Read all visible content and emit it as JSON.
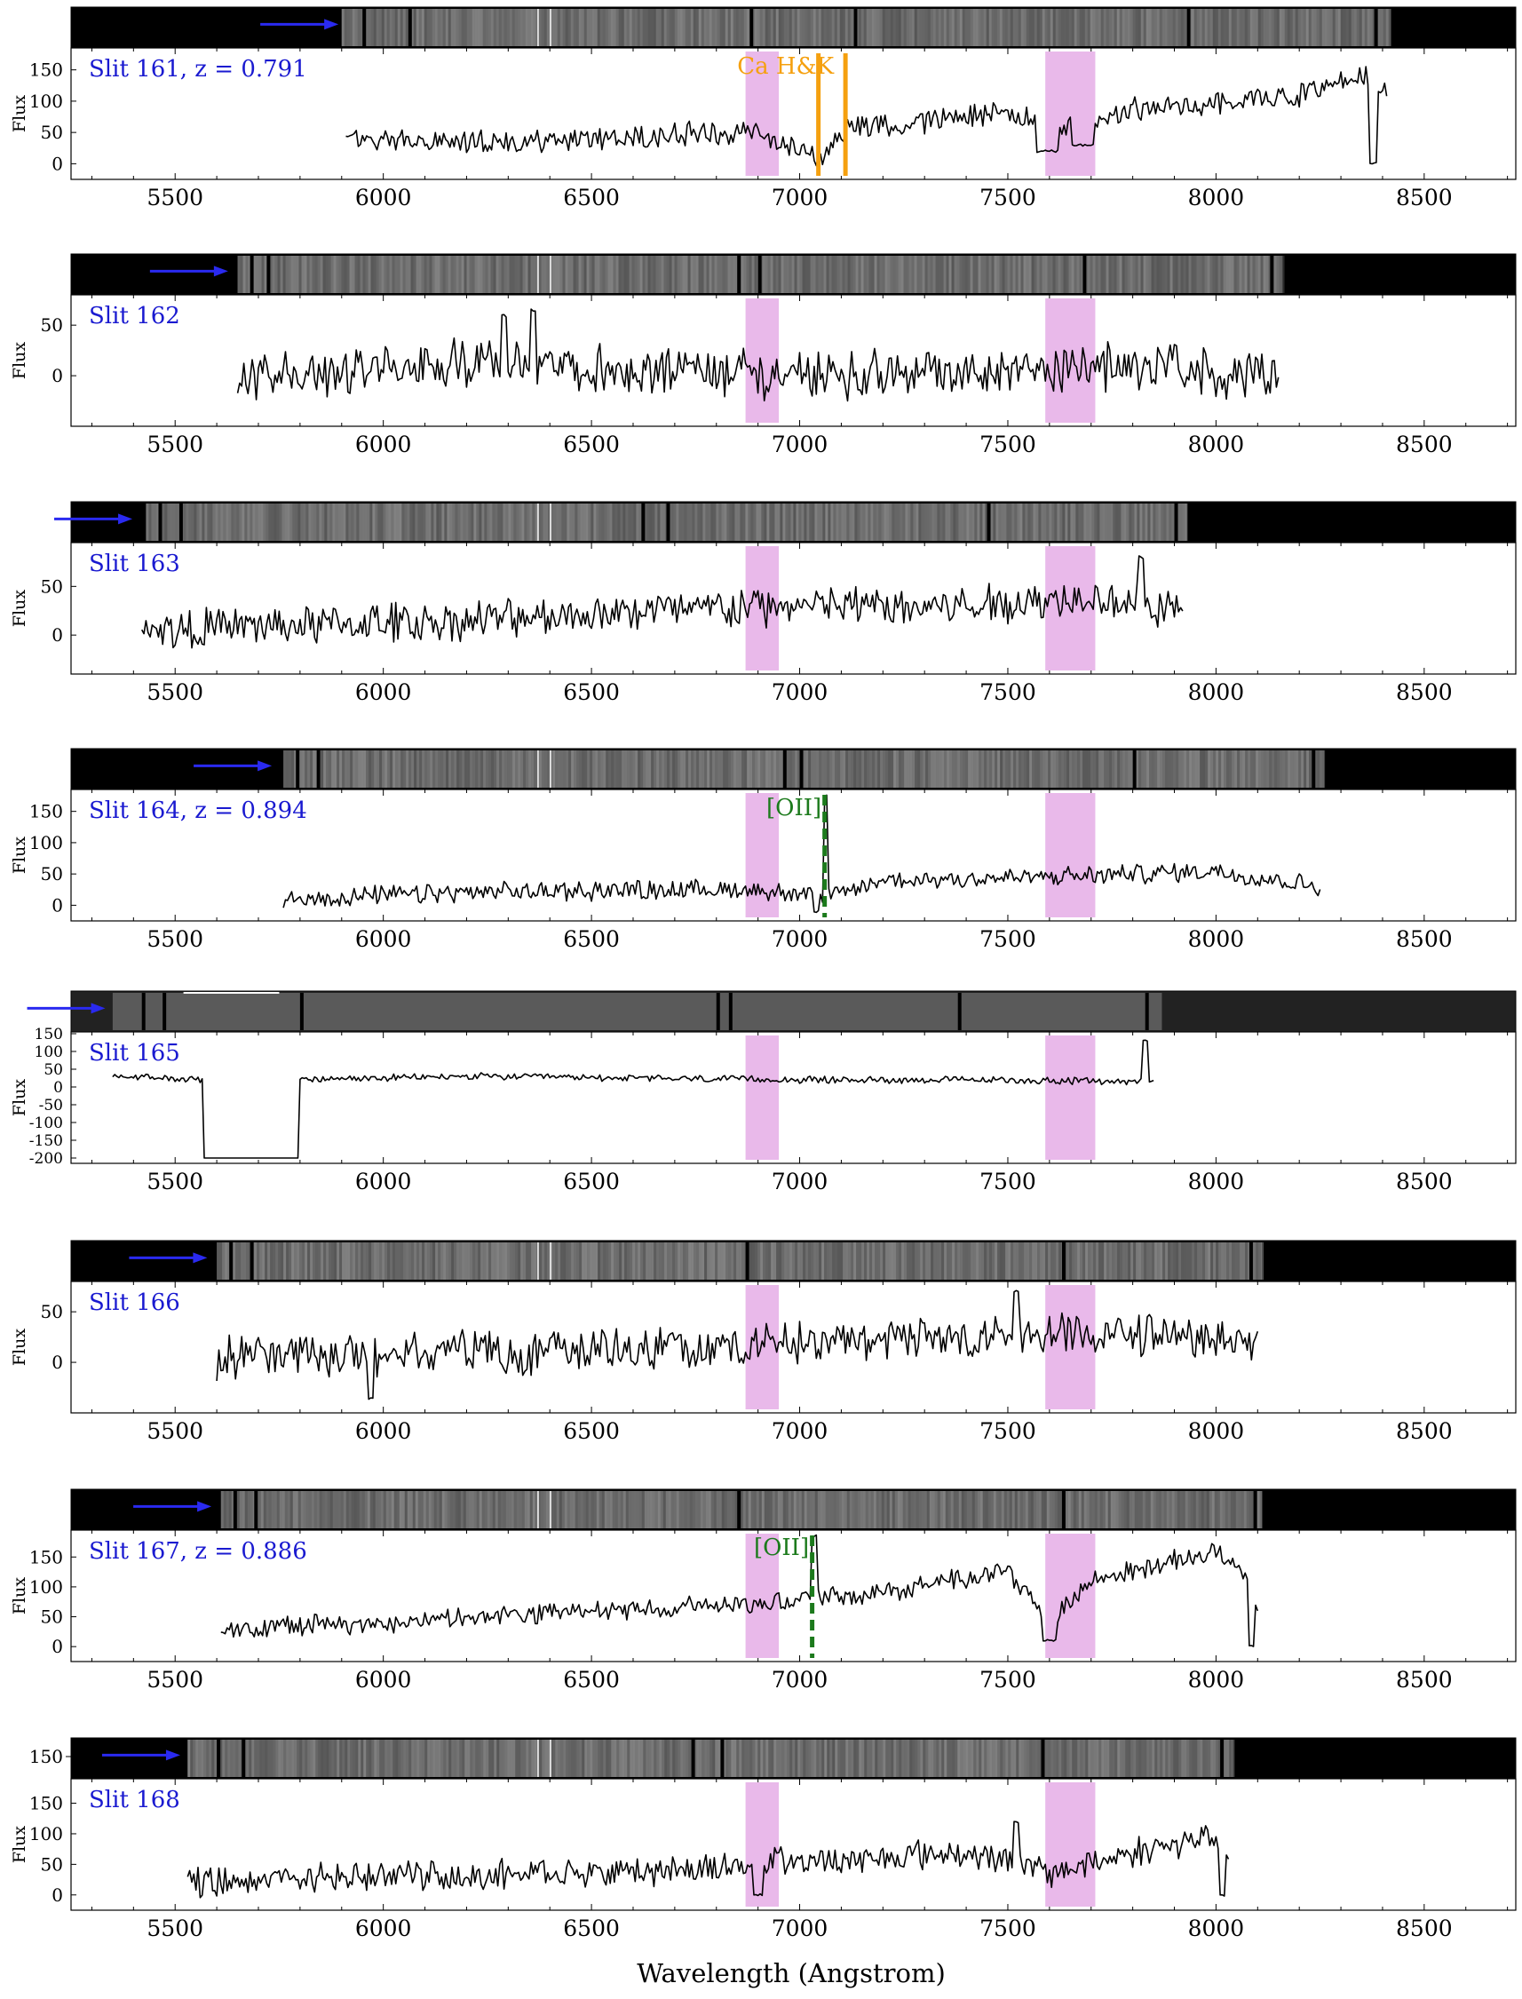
{
  "figure": {
    "xlabel": "Wavelength (Angstrom)",
    "ylabel": "Flux"
  },
  "chart_data": {
    "type": "line",
    "xlabel": "Wavelength (Angstrom)",
    "ylabel": "Flux",
    "xlim": [
      5250,
      8720
    ],
    "xticks": [
      5500,
      6000,
      6500,
      7000,
      7500,
      8000,
      8500
    ],
    "telluric_bands": [
      [
        6870,
        6950
      ],
      [
        7590,
        7710
      ]
    ],
    "colors": {
      "spectrum": "#000000",
      "telluric": "#e9b9ea",
      "slit_label": "#1a1ad0",
      "arrow": "#2a2af0",
      "ca_hk": "#f5a00f",
      "oii": "#1c7a1c"
    },
    "panels": [
      {
        "label": "Slit 161, z = 0.791",
        "ylim": [
          -25,
          185
        ],
        "yticks": [
          0,
          50,
          100,
          150
        ],
        "twod_ticks": [],
        "x_start": 5910,
        "x_end": 8410,
        "arrow_end": 5905,
        "twod_start": 5900,
        "twod_end": 8420,
        "twod_bars": [
          5950,
          6060,
          6880,
          7130,
          7930,
          8380
        ],
        "lines": [
          {
            "name": "Ca H&K",
            "wavelengths": [
              7045,
              7110
            ],
            "style": "solid",
            "color_key": "ca_hk",
            "label_x": 6850,
            "label_y": 155
          }
        ],
        "anchors": [
          [
            5910,
            40
          ],
          [
            6300,
            35
          ],
          [
            6700,
            45
          ],
          [
            6900,
            50
          ],
          [
            7050,
            15
          ],
          [
            7110,
            55
          ],
          [
            7500,
            80
          ],
          [
            7650,
            55
          ],
          [
            7800,
            85
          ],
          [
            8000,
            100
          ],
          [
            8200,
            110
          ],
          [
            8350,
            140
          ],
          [
            8410,
            105
          ]
        ],
        "noise": 16,
        "seed": 161,
        "features": [
          [
            7595,
            20,
            25
          ],
          [
            7680,
            30,
            25
          ],
          [
            8380,
            0,
            10
          ],
          [
            8395,
            115,
            6
          ]
        ]
      },
      {
        "label": "Slit 162",
        "ylim": [
          -50,
          80
        ],
        "yticks": [
          0,
          50
        ],
        "twod_ticks": [],
        "x_start": 5650,
        "x_end": 8150,
        "arrow_end": 5640,
        "twod_start": 5650,
        "twod_end": 8160,
        "twod_bars": [
          5680,
          5720,
          6850,
          6900,
          7680,
          8130
        ],
        "lines": [],
        "anchors": [
          [
            5650,
            0
          ],
          [
            6000,
            5
          ],
          [
            6300,
            15
          ],
          [
            6600,
            5
          ],
          [
            7000,
            0
          ],
          [
            7400,
            5
          ],
          [
            7800,
            10
          ],
          [
            8150,
            0
          ]
        ],
        "noise": 20,
        "seed": 162,
        "features": [
          [
            6290,
            60,
            8
          ],
          [
            6360,
            65,
            8
          ]
        ]
      },
      {
        "label": "Slit 163",
        "ylim": [
          -40,
          95
        ],
        "yticks": [
          0,
          50
        ],
        "twod_ticks": [],
        "x_start": 5420,
        "x_end": 7920,
        "arrow_end": 5410,
        "twod_start": 5430,
        "twod_end": 7930,
        "twod_bars": [
          5460,
          5510,
          6620,
          6680,
          7450,
          7900
        ],
        "lines": [],
        "anchors": [
          [
            5420,
            5
          ],
          [
            5800,
            10
          ],
          [
            6200,
            15
          ],
          [
            6600,
            25
          ],
          [
            7000,
            30
          ],
          [
            7400,
            30
          ],
          [
            7700,
            40
          ],
          [
            7920,
            25
          ]
        ],
        "noise": 17,
        "seed": 163,
        "features": [
          [
            7820,
            80,
            6
          ]
        ]
      },
      {
        "label": "Slit 164, z = 0.894",
        "ylim": [
          -25,
          185
        ],
        "yticks": [
          0,
          50,
          100,
          150
        ],
        "twod_ticks": [],
        "x_start": 5760,
        "x_end": 8250,
        "arrow_end": 5745,
        "twod_start": 5760,
        "twod_end": 8260,
        "twod_bars": [
          5790,
          5840,
          6960,
          7000,
          7800,
          8230
        ],
        "lines": [
          {
            "name": "[OII]",
            "wavelengths": [
              7060
            ],
            "style": "dashed",
            "color_key": "oii",
            "label_x": 6920,
            "label_y": 155
          }
        ],
        "anchors": [
          [
            5760,
            10
          ],
          [
            6200,
            20
          ],
          [
            6600,
            25
          ],
          [
            6900,
            25
          ],
          [
            7060,
            10
          ],
          [
            7200,
            40
          ],
          [
            7600,
            45
          ],
          [
            8000,
            55
          ],
          [
            8250,
            30
          ]
        ],
        "noise": 13,
        "seed": 164,
        "features": [
          [
            7062,
            175,
            5
          ],
          [
            7040,
            -10,
            6
          ]
        ]
      },
      {
        "label": "Slit 165",
        "ylim": [
          -215,
          155
        ],
        "yticks": [
          150,
          100,
          50,
          0,
          -50,
          -100,
          -150,
          -200
        ],
        "twod_ticks": [],
        "x_start": 5350,
        "x_end": 7850,
        "arrow_end": 5345,
        "twod_start": 5350,
        "twod_end": 7870,
        "twod_bars": [
          5420,
          5470,
          5800,
          6800,
          6830,
          7380,
          7830
        ],
        "lines": [],
        "anchors": [
          [
            5350,
            30
          ],
          [
            5550,
            20
          ],
          [
            5800,
            20
          ],
          [
            6200,
            30
          ],
          [
            6600,
            25
          ],
          [
            7000,
            20
          ],
          [
            7400,
            20
          ],
          [
            7850,
            15
          ]
        ],
        "noise": 8,
        "seed": 165,
        "features": [
          [
            7830,
            130,
            5
          ]
        ],
        "dropout": [
          5570,
          5795,
          -200
        ]
      },
      {
        "label": "Slit 166",
        "ylim": [
          -50,
          80
        ],
        "yticks": [
          0,
          50
        ],
        "twod_ticks": [],
        "x_start": 5600,
        "x_end": 8100,
        "arrow_end": 5590,
        "twod_start": 5600,
        "twod_end": 8110,
        "twod_bars": [
          5630,
          5680,
          6870,
          7630,
          8080
        ],
        "lines": [],
        "anchors": [
          [
            5600,
            5
          ],
          [
            6000,
            10
          ],
          [
            6400,
            10
          ],
          [
            6800,
            15
          ],
          [
            7200,
            20
          ],
          [
            7600,
            25
          ],
          [
            8000,
            25
          ],
          [
            8100,
            15
          ]
        ],
        "noise": 18,
        "seed": 166,
        "features": [
          [
            5970,
            -35,
            6
          ],
          [
            7520,
            70,
            6
          ]
        ]
      },
      {
        "label": "Slit 167, z = 0.886",
        "ylim": [
          -25,
          195
        ],
        "yticks": [
          0,
          50,
          100,
          150
        ],
        "twod_ticks": [],
        "x_start": 5610,
        "x_end": 8100,
        "arrow_end": 5600,
        "twod_start": 5610,
        "twod_end": 8110,
        "twod_bars": [
          5640,
          5690,
          6850,
          7630,
          8090
        ],
        "lines": [
          {
            "name": "[OII]",
            "wavelengths": [
              7030
            ],
            "style": "dashed",
            "color_key": "oii",
            "label_x": 6890,
            "label_y": 165
          }
        ],
        "anchors": [
          [
            5610,
            30
          ],
          [
            6000,
            40
          ],
          [
            6400,
            55
          ],
          [
            6800,
            70
          ],
          [
            7000,
            80
          ],
          [
            7200,
            90
          ],
          [
            7500,
            130
          ],
          [
            7600,
            40
          ],
          [
            7700,
            110
          ],
          [
            8000,
            160
          ],
          [
            8080,
            120
          ],
          [
            8100,
            60
          ]
        ],
        "noise": 14,
        "seed": 167,
        "features": [
          [
            7035,
            185,
            6
          ],
          [
            7600,
            10,
            18
          ],
          [
            8085,
            0,
            6
          ]
        ]
      },
      {
        "label": "Slit 168",
        "ylim": [
          -25,
          190
        ],
        "yticks": [
          0,
          50,
          100,
          150
        ],
        "twod_ticks": [
          150
        ],
        "x_start": 5530,
        "x_end": 8030,
        "arrow_end": 5525,
        "twod_start": 5530,
        "twod_end": 8040,
        "twod_bars": [
          5600,
          5660,
          6740,
          6810,
          7580,
          8010
        ],
        "lines": [],
        "anchors": [
          [
            5530,
            20
          ],
          [
            5900,
            30
          ],
          [
            6300,
            35
          ],
          [
            6700,
            40
          ],
          [
            7000,
            55
          ],
          [
            7400,
            70
          ],
          [
            7600,
            35
          ],
          [
            7800,
            70
          ],
          [
            8000,
            95
          ],
          [
            8030,
            40
          ]
        ],
        "noise": 20,
        "seed": 168,
        "features": [
          [
            6900,
            0,
            10
          ],
          [
            7520,
            120,
            6
          ],
          [
            8015,
            0,
            6
          ]
        ]
      }
    ]
  }
}
